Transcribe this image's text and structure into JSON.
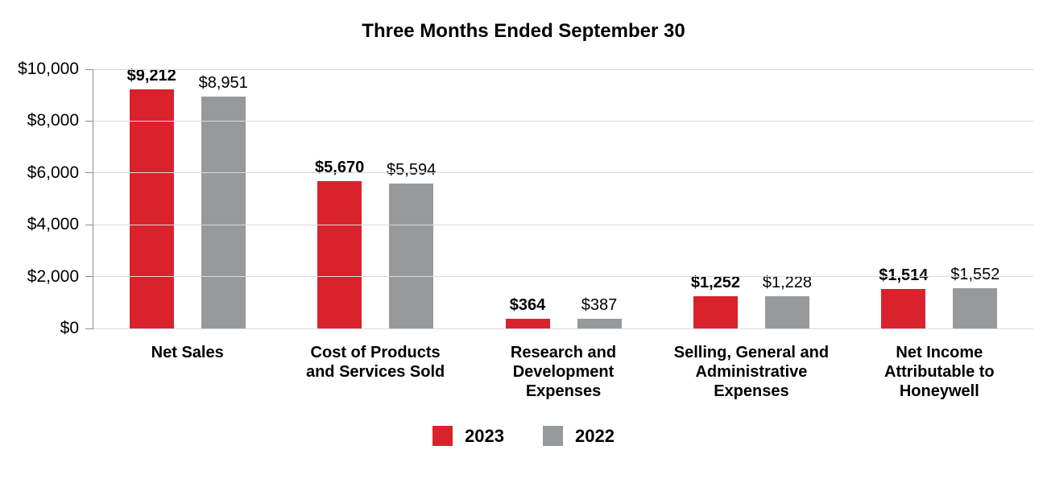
{
  "title": "Three Months Ended September 30",
  "chart_data": {
    "type": "bar",
    "title": "Three Months Ended September 30",
    "categories": [
      "Net Sales",
      "Cost of Products and Services Sold",
      "Research and Development Expenses",
      "Selling, General and Administrative Expenses",
      "Net Income Attributable to Honeywell"
    ],
    "category_lines": [
      [
        "Net Sales"
      ],
      [
        "Cost of Products",
        "and Services Sold"
      ],
      [
        "Research and",
        "Development",
        "Expenses"
      ],
      [
        "Selling, General and",
        "Administrative",
        "Expenses"
      ],
      [
        "Net Income",
        "Attributable to",
        "Honeywell"
      ]
    ],
    "series": [
      {
        "name": "2023",
        "color": "#da222d",
        "bold_labels": true,
        "values": [
          9212,
          5670,
          364,
          1252,
          1514
        ],
        "labels": [
          "$9,212",
          "$5,670",
          "$364",
          "$1,252",
          "$1,514"
        ]
      },
      {
        "name": "2022",
        "color": "#98999b",
        "bold_labels": false,
        "values": [
          8951,
          5594,
          387,
          1228,
          1552
        ],
        "labels": [
          "$8,951",
          "$5,594",
          "$387",
          "$1,228",
          "$1,552"
        ]
      }
    ],
    "xlabel": "",
    "ylabel": "",
    "ylim": [
      0,
      10000
    ],
    "y_ticks": [
      {
        "value": 10000,
        "label": "$10,000"
      },
      {
        "value": 8000,
        "label": "$8,000"
      },
      {
        "value": 6000,
        "label": "$6,000"
      },
      {
        "value": 4000,
        "label": "$4,000"
      },
      {
        "value": 2000,
        "label": "$2,000"
      },
      {
        "value": 0,
        "label": "$0"
      }
    ],
    "grid": "horizontal",
    "legend_position": "bottom"
  },
  "legend": {
    "items": [
      {
        "label": "2023",
        "color": "#da222d"
      },
      {
        "label": "2022",
        "color": "#98999b"
      }
    ]
  },
  "colors": {
    "series_2023": "#da222d",
    "series_2022": "#98999b",
    "gridline": "#d9d9d9",
    "axis": "#8c8c8c",
    "text": "#000000",
    "background": "#ffffff"
  }
}
